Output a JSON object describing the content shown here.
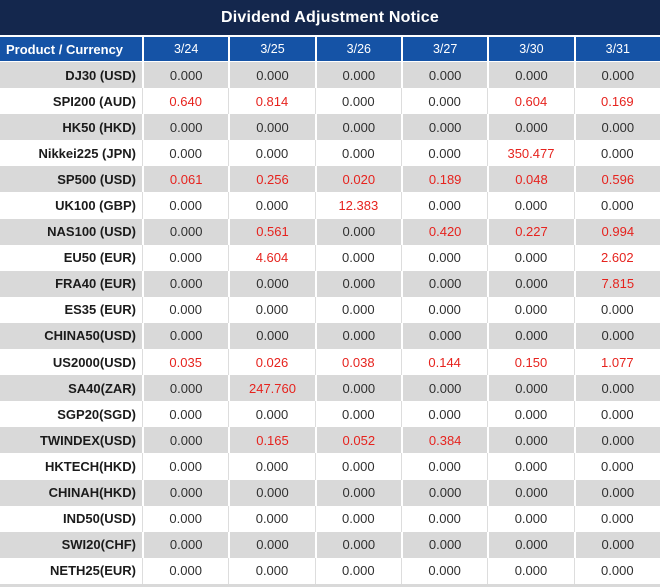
{
  "title": "Dividend Adjustment Notice",
  "colors": {
    "title_bg": "#14274D",
    "header_bg": "#1553A6",
    "row_bg": "#FFFFFF",
    "row_alt_bg": "#D9D9D9",
    "value_black": "#303030",
    "value_red": "#E6231E"
  },
  "table": {
    "product_header": "Product / Currency",
    "date_headers": [
      "3/24",
      "3/25",
      "3/26",
      "3/27",
      "3/30",
      "3/31"
    ],
    "rows": [
      {
        "product": "DJ30 (USD)",
        "values": [
          "0.000",
          "0.000",
          "0.000",
          "0.000",
          "0.000",
          "0.000"
        ],
        "red": [
          0,
          0,
          0,
          0,
          0,
          0
        ]
      },
      {
        "product": "SPI200 (AUD)",
        "values": [
          "0.640",
          "0.814",
          "0.000",
          "0.000",
          "0.604",
          "0.169"
        ],
        "red": [
          1,
          1,
          0,
          0,
          1,
          1
        ]
      },
      {
        "product": "HK50 (HKD)",
        "values": [
          "0.000",
          "0.000",
          "0.000",
          "0.000",
          "0.000",
          "0.000"
        ],
        "red": [
          0,
          0,
          0,
          0,
          0,
          0
        ]
      },
      {
        "product": "Nikkei225 (JPN)",
        "values": [
          "0.000",
          "0.000",
          "0.000",
          "0.000",
          "350.477",
          "0.000"
        ],
        "red": [
          0,
          0,
          0,
          0,
          1,
          0
        ]
      },
      {
        "product": "SP500 (USD)",
        "values": [
          "0.061",
          "0.256",
          "0.020",
          "0.189",
          "0.048",
          "0.596"
        ],
        "red": [
          1,
          1,
          1,
          1,
          1,
          1
        ]
      },
      {
        "product": "UK100 (GBP)",
        "values": [
          "0.000",
          "0.000",
          "12.383",
          "0.000",
          "0.000",
          "0.000"
        ],
        "red": [
          0,
          0,
          1,
          0,
          0,
          0
        ]
      },
      {
        "product": "NAS100 (USD)",
        "values": [
          "0.000",
          "0.561",
          "0.000",
          "0.420",
          "0.227",
          "0.994"
        ],
        "red": [
          0,
          1,
          0,
          1,
          1,
          1
        ]
      },
      {
        "product": "EU50 (EUR)",
        "values": [
          "0.000",
          "4.604",
          "0.000",
          "0.000",
          "0.000",
          "2.602"
        ],
        "red": [
          0,
          1,
          0,
          0,
          0,
          1
        ]
      },
      {
        "product": "FRA40 (EUR)",
        "values": [
          "0.000",
          "0.000",
          "0.000",
          "0.000",
          "0.000",
          "7.815"
        ],
        "red": [
          0,
          0,
          0,
          0,
          0,
          1
        ]
      },
      {
        "product": "ES35 (EUR)",
        "values": [
          "0.000",
          "0.000",
          "0.000",
          "0.000",
          "0.000",
          "0.000"
        ],
        "red": [
          0,
          0,
          0,
          0,
          0,
          0
        ]
      },
      {
        "product": "CHINA50(USD)",
        "values": [
          "0.000",
          "0.000",
          "0.000",
          "0.000",
          "0.000",
          "0.000"
        ],
        "red": [
          0,
          0,
          0,
          0,
          0,
          0
        ]
      },
      {
        "product": "US2000(USD)",
        "values": [
          "0.035",
          "0.026",
          "0.038",
          "0.144",
          "0.150",
          "1.077"
        ],
        "red": [
          1,
          1,
          1,
          1,
          1,
          1
        ]
      },
      {
        "product": "SA40(ZAR)",
        "values": [
          "0.000",
          "247.760",
          "0.000",
          "0.000",
          "0.000",
          "0.000"
        ],
        "red": [
          0,
          1,
          0,
          0,
          0,
          0
        ]
      },
      {
        "product": "SGP20(SGD)",
        "values": [
          "0.000",
          "0.000",
          "0.000",
          "0.000",
          "0.000",
          "0.000"
        ],
        "red": [
          0,
          0,
          0,
          0,
          0,
          0
        ]
      },
      {
        "product": "TWINDEX(USD)",
        "values": [
          "0.000",
          "0.165",
          "0.052",
          "0.384",
          "0.000",
          "0.000"
        ],
        "red": [
          0,
          1,
          1,
          1,
          0,
          0
        ]
      },
      {
        "product": "HKTECH(HKD)",
        "values": [
          "0.000",
          "0.000",
          "0.000",
          "0.000",
          "0.000",
          "0.000"
        ],
        "red": [
          0,
          0,
          0,
          0,
          0,
          0
        ]
      },
      {
        "product": "CHINAH(HKD)",
        "values": [
          "0.000",
          "0.000",
          "0.000",
          "0.000",
          "0.000",
          "0.000"
        ],
        "red": [
          0,
          0,
          0,
          0,
          0,
          0
        ]
      },
      {
        "product": "IND50(USD)",
        "values": [
          "0.000",
          "0.000",
          "0.000",
          "0.000",
          "0.000",
          "0.000"
        ],
        "red": [
          0,
          0,
          0,
          0,
          0,
          0
        ]
      },
      {
        "product": "SWI20(CHF)",
        "values": [
          "0.000",
          "0.000",
          "0.000",
          "0.000",
          "0.000",
          "0.000"
        ],
        "red": [
          0,
          0,
          0,
          0,
          0,
          0
        ]
      },
      {
        "product": "NETH25(EUR)",
        "values": [
          "0.000",
          "0.000",
          "0.000",
          "0.000",
          "0.000",
          "0.000"
        ],
        "red": [
          0,
          0,
          0,
          0,
          0,
          0
        ]
      }
    ]
  }
}
